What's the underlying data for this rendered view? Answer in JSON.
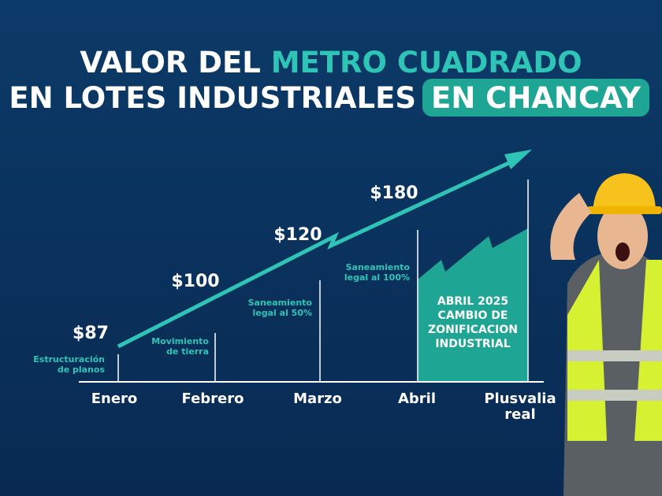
{
  "title": {
    "line1": [
      "VALOR DEL",
      "METRO CUADRADO"
    ],
    "line2": [
      "EN LOTES INDUSTRIALES",
      "EN CHANCAY"
    ]
  },
  "milestones": [
    {
      "month": "Enero",
      "price": "$87",
      "note": [
        "Estructuración",
        "de planos"
      ]
    },
    {
      "month": "Febrero",
      "price": "$100",
      "note": [
        "Movimiento",
        "de tierra"
      ]
    },
    {
      "month": "Marzo",
      "price": "$120",
      "note": [
        "Saneamiento",
        "legal al 50%"
      ]
    },
    {
      "month": "Abril",
      "price": "$180",
      "note": [
        "Saneamiento",
        "legal al 100%"
      ]
    }
  ],
  "final_label": [
    "Plusvalia",
    "real"
  ],
  "highlight": [
    "ABRIL 2025",
    "CAMBIO DE",
    "ZONIFICACION",
    "INDUSTRIAL"
  ]
}
